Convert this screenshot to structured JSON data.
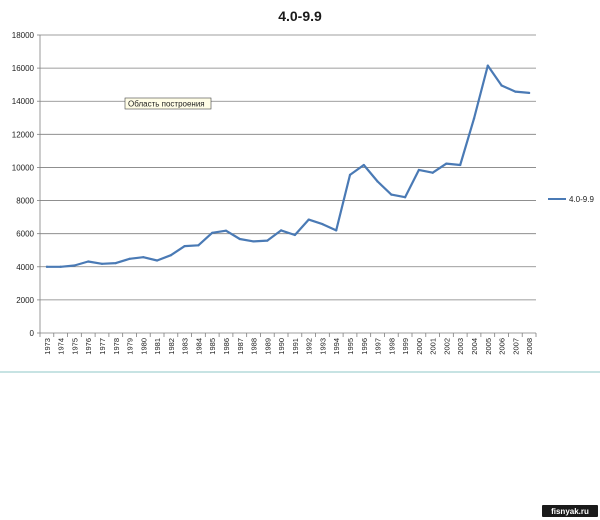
{
  "chart_data": {
    "type": "line",
    "title": "4.0-9.9",
    "xlabel": "",
    "ylabel": "",
    "ylim": [
      0,
      18000
    ],
    "yticks": [
      0,
      2000,
      4000,
      6000,
      8000,
      10000,
      12000,
      14000,
      16000,
      18000
    ],
    "grid": true,
    "legend_position": "right",
    "categories": [
      "1973",
      "1974",
      "1975",
      "1976",
      "1977",
      "1978",
      "1979",
      "1980",
      "1981",
      "1982",
      "1983",
      "1984",
      "1985",
      "1986",
      "1987",
      "1988",
      "1989",
      "1990",
      "1991",
      "1992",
      "1993",
      "1994",
      "1995",
      "1996",
      "1997",
      "1998",
      "1999",
      "2000",
      "2001",
      "2002",
      "2003",
      "2004",
      "2005",
      "2006",
      "2007",
      "2008"
    ],
    "series": [
      {
        "name": "4.0-9.9",
        "color": "#4a7ab5",
        "values": [
          4000,
          4000,
          4080,
          4320,
          4180,
          4220,
          4480,
          4580,
          4380,
          4700,
          5250,
          5300,
          6050,
          6180,
          5680,
          5530,
          5580,
          6200,
          5920,
          6850,
          6580,
          6200,
          9550,
          10150,
          9150,
          8360,
          8200,
          9850,
          9680,
          10230,
          10150,
          12950,
          16150,
          14950,
          14580,
          14500
        ]
      }
    ]
  },
  "tooltip": {
    "text": "Область построения"
  },
  "watermark": {
    "text": "fisnyak.ru"
  },
  "colors": {
    "grid": "#7f7f7f",
    "axis": "#7f7f7f",
    "separator": "#8fc7c7",
    "watermark_bg": "#1a1a1a"
  }
}
